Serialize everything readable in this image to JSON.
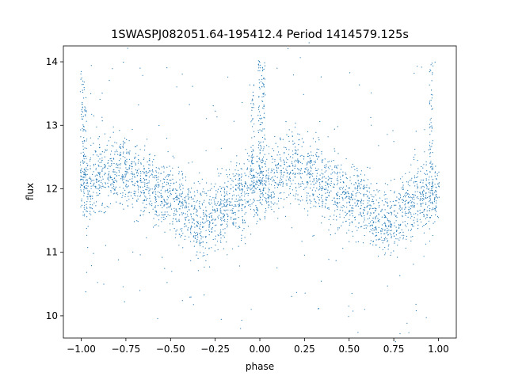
{
  "chart_data": {
    "type": "scatter",
    "title": "1SWASPJ082051.64-195412.4 Period 1414579.125s",
    "xlabel": "phase",
    "ylabel": "flux",
    "xlim": [
      -1.1,
      1.1
    ],
    "ylim": [
      9.65,
      14.25
    ],
    "xticks": [
      -1.0,
      -0.75,
      -0.5,
      -0.25,
      0.0,
      0.25,
      0.5,
      0.75,
      1.0
    ],
    "xtick_labels": [
      "−1.00",
      "−0.75",
      "−0.50",
      "−0.25",
      "0.00",
      "0.25",
      "0.50",
      "0.75",
      "1.00"
    ],
    "yticks": [
      10,
      11,
      12,
      13,
      14
    ],
    "ytick_labels": [
      "10",
      "11",
      "12",
      "13",
      "14"
    ],
    "grid": false,
    "marker_color": "#1f77b4",
    "series": [
      {
        "description": "dense phase-folded light curve; profile repeats over phase -1..0 and 0..1",
        "profile_phase": [
          0.0,
          0.05,
          0.1,
          0.15,
          0.2,
          0.25,
          0.3,
          0.35,
          0.4,
          0.45,
          0.5,
          0.55,
          0.6,
          0.65,
          0.7,
          0.75,
          0.8,
          0.85,
          0.9,
          0.95,
          1.0
        ],
        "profile_median_flux": [
          11.95,
          12.0,
          12.2,
          12.3,
          12.3,
          12.25,
          12.2,
          12.1,
          12.0,
          11.9,
          11.85,
          11.8,
          11.65,
          11.5,
          11.45,
          11.55,
          11.7,
          11.8,
          11.9,
          11.95,
          11.95
        ],
        "scatter_sigma": 0.28,
        "spike_phases": [
          0.0,
          0.02,
          -0.98,
          -1.0,
          0.96,
          -0.04
        ],
        "spike_max_flux": [
          14.05,
          14.0,
          13.7,
          14.05,
          14.0,
          13.7
        ]
      }
    ]
  }
}
